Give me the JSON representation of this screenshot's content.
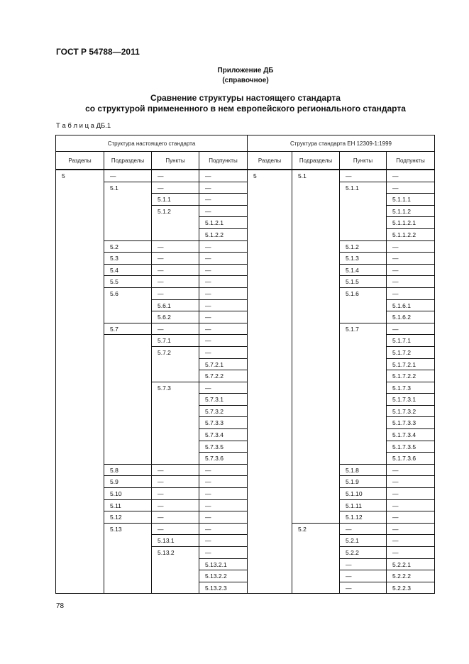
{
  "header": {
    "doc_code": "ГОСТ Р 54788—2011"
  },
  "appendix": {
    "title": "Приложение ДБ",
    "note": "(справочное)"
  },
  "heading": {
    "line1": "Сравнение структуры настоящего стандарта",
    "line2": "со структурой примененного в нем европейского регионального стандарта"
  },
  "table": {
    "caption": "Т а б л и ц а  ДБ.1",
    "group_headers": [
      "Структура настоящего стандарта",
      "Структура стандарта ЕН 12309-1:1999"
    ],
    "column_headers": [
      "Разделы",
      "Подразделы",
      "Пункты",
      "Подпункты",
      "Разделы",
      "Подразделы",
      "Пункты",
      "Подпункты"
    ],
    "columns": [
      [
        {
          "text": "5",
          "span": 36
        }
      ],
      [
        {
          "text": "—",
          "span": 1
        },
        {
          "text": "5.1",
          "span": 5
        },
        {
          "text": "5.2",
          "span": 1
        },
        {
          "text": "5.3",
          "span": 1
        },
        {
          "text": "5.4",
          "span": 1
        },
        {
          "text": "5.5",
          "span": 1
        },
        {
          "text": "5.6",
          "span": 3
        },
        {
          "text": "5.7",
          "span": 1
        },
        {
          "text": "",
          "span": 11
        },
        {
          "text": "5.8",
          "span": 1
        },
        {
          "text": "5.9",
          "span": 1
        },
        {
          "text": "5.10",
          "span": 1
        },
        {
          "text": "5.11",
          "span": 1
        },
        {
          "text": "5.12",
          "span": 1
        },
        {
          "text": "5.13",
          "span": 6
        }
      ],
      [
        {
          "text": "—",
          "span": 1
        },
        {
          "text": "—",
          "span": 1
        },
        {
          "text": "5.1.1",
          "span": 1
        },
        {
          "text": "5.1.2",
          "span": 3
        },
        {
          "text": "—",
          "span": 1
        },
        {
          "text": "—",
          "span": 1
        },
        {
          "text": "—",
          "span": 1
        },
        {
          "text": "—",
          "span": 1
        },
        {
          "text": "—",
          "span": 1
        },
        {
          "text": "5.6.1",
          "span": 1
        },
        {
          "text": "5.6.2",
          "span": 1
        },
        {
          "text": "—",
          "span": 1
        },
        {
          "text": "5.7.1",
          "span": 1
        },
        {
          "text": "5.7.2",
          "span": 3
        },
        {
          "text": "5.7.3",
          "span": 7
        },
        {
          "text": "—",
          "span": 1
        },
        {
          "text": "—",
          "span": 1
        },
        {
          "text": "—",
          "span": 1
        },
        {
          "text": "—",
          "span": 1
        },
        {
          "text": "—",
          "span": 1
        },
        {
          "text": "—",
          "span": 1
        },
        {
          "text": "5.13.1",
          "span": 1
        },
        {
          "text": "5.13.2",
          "span": 4
        }
      ],
      [
        {
          "text": "—",
          "span": 1
        },
        {
          "text": "—",
          "span": 1
        },
        {
          "text": "—",
          "span": 1
        },
        {
          "text": "—",
          "span": 1
        },
        {
          "text": "5.1.2.1",
          "span": 1
        },
        {
          "text": "5.1.2.2",
          "span": 1
        },
        {
          "text": "—",
          "span": 1
        },
        {
          "text": "—",
          "span": 1
        },
        {
          "text": "—",
          "span": 1
        },
        {
          "text": "—",
          "span": 1
        },
        {
          "text": "—",
          "span": 1
        },
        {
          "text": "—",
          "span": 1
        },
        {
          "text": "—",
          "span": 1
        },
        {
          "text": "—",
          "span": 1
        },
        {
          "text": "—",
          "span": 1
        },
        {
          "text": "—",
          "span": 1
        },
        {
          "text": "5.7.2.1",
          "span": 1
        },
        {
          "text": "5.7.2.2",
          "span": 1
        },
        {
          "text": "—",
          "span": 1
        },
        {
          "text": "5.7.3.1",
          "span": 1
        },
        {
          "text": "5.7.3.2",
          "span": 1
        },
        {
          "text": "5.7.3.3",
          "span": 1
        },
        {
          "text": "5.7.3.4",
          "span": 1
        },
        {
          "text": "5.7.3.5",
          "span": 1
        },
        {
          "text": "5.7.3.6",
          "span": 1
        },
        {
          "text": "—",
          "span": 1
        },
        {
          "text": "—",
          "span": 1
        },
        {
          "text": "—",
          "span": 1
        },
        {
          "text": "—",
          "span": 1
        },
        {
          "text": "—",
          "span": 1
        },
        {
          "text": "—",
          "span": 1
        },
        {
          "text": "—",
          "span": 1
        },
        {
          "text": "—",
          "span": 1
        },
        {
          "text": "5.13.2.1",
          "span": 1
        },
        {
          "text": "5.13.2.2",
          "span": 1
        },
        {
          "text": "5.13.2.3",
          "span": 1
        }
      ],
      [
        {
          "text": "5",
          "span": 36
        }
      ],
      [
        {
          "text": "5.1",
          "span": 30
        },
        {
          "text": "5.2",
          "span": 6
        }
      ],
      [
        {
          "text": "—",
          "span": 1
        },
        {
          "text": "5.1.1",
          "span": 5
        },
        {
          "text": "5.1.2",
          "span": 1
        },
        {
          "text": "5.1.3",
          "span": 1
        },
        {
          "text": "5.1.4",
          "span": 1
        },
        {
          "text": "5.1.5",
          "span": 1
        },
        {
          "text": "5.1.6",
          "span": 3
        },
        {
          "text": "5.1.7",
          "span": 12
        },
        {
          "text": "5.1.8",
          "span": 1
        },
        {
          "text": "5.1.9",
          "span": 1
        },
        {
          "text": "5.1.10",
          "span": 1
        },
        {
          "text": "5.1.11",
          "span": 1
        },
        {
          "text": "5.1.12",
          "span": 1
        },
        {
          "text": "—",
          "span": 1
        },
        {
          "text": "5.2.1",
          "span": 1
        },
        {
          "text": "5.2.2",
          "span": 1
        },
        {
          "text": "—",
          "span": 1
        },
        {
          "text": "—",
          "span": 1
        },
        {
          "text": "—",
          "span": 1
        }
      ],
      [
        {
          "text": "—",
          "span": 1
        },
        {
          "text": "—",
          "span": 1
        },
        {
          "text": "5.1.1.1",
          "span": 1
        },
        {
          "text": "5.1.1.2",
          "span": 1
        },
        {
          "text": "5.1.1.2.1",
          "span": 1
        },
        {
          "text": "5.1.1.2.2",
          "span": 1
        },
        {
          "text": "—",
          "span": 1
        },
        {
          "text": "—",
          "span": 1
        },
        {
          "text": "—",
          "span": 1
        },
        {
          "text": "—",
          "span": 1
        },
        {
          "text": "—",
          "span": 1
        },
        {
          "text": "5.1.6.1",
          "span": 1
        },
        {
          "text": "5.1.6.2",
          "span": 1
        },
        {
          "text": "—",
          "span": 1
        },
        {
          "text": "5.1.7.1",
          "span": 1
        },
        {
          "text": "5.1.7.2",
          "span": 1
        },
        {
          "text": "5.1.7.2.1",
          "span": 1
        },
        {
          "text": "5.1.7.2.2",
          "span": 1
        },
        {
          "text": "5.1.7.3",
          "span": 1
        },
        {
          "text": "5.1.7.3.1",
          "span": 1
        },
        {
          "text": "5.1.7.3.2",
          "span": 1
        },
        {
          "text": "5.1.7.3.3",
          "span": 1
        },
        {
          "text": "5.1.7.3.4",
          "span": 1
        },
        {
          "text": "5.1.7.3.5",
          "span": 1
        },
        {
          "text": "5.1.7.3.6",
          "span": 1
        },
        {
          "text": "—",
          "span": 1
        },
        {
          "text": "—",
          "span": 1
        },
        {
          "text": "—",
          "span": 1
        },
        {
          "text": "—",
          "span": 1
        },
        {
          "text": "—",
          "span": 1
        },
        {
          "text": "—",
          "span": 1
        },
        {
          "text": "—",
          "span": 1
        },
        {
          "text": "—",
          "span": 1
        },
        {
          "text": "5.2.2.1",
          "span": 1
        },
        {
          "text": "5.2.2.2",
          "span": 1
        },
        {
          "text": "5.2.2.3",
          "span": 1
        }
      ]
    ]
  },
  "footer": {
    "page_number": "78"
  }
}
